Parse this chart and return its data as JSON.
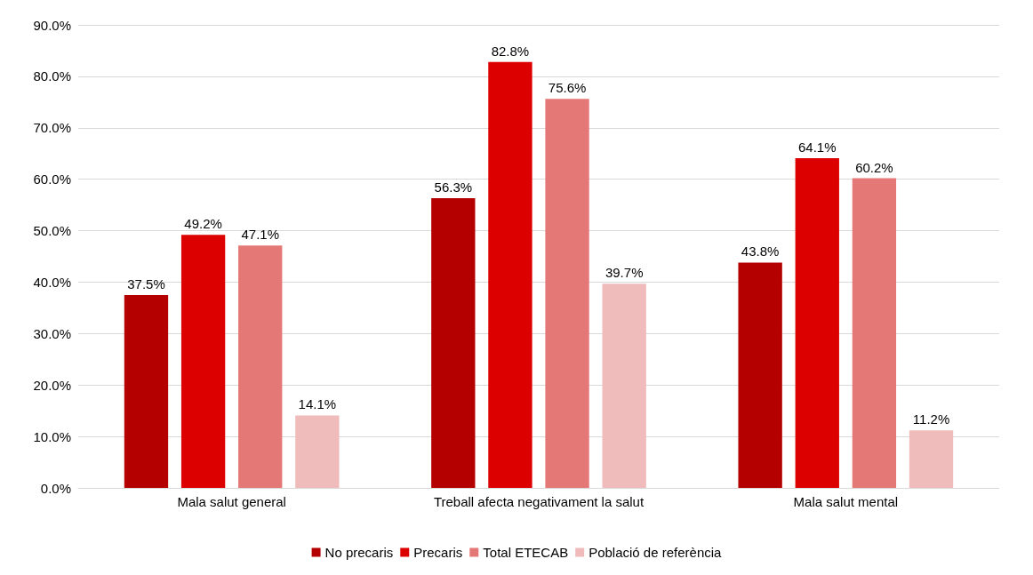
{
  "chart_data": {
    "type": "bar",
    "categories": [
      "Mala salut general",
      "Treball afecta negativament la salut",
      "Mala salut mental"
    ],
    "series": [
      {
        "name": "No precaris",
        "color": "#b50000",
        "values": [
          37.5,
          56.3,
          43.8
        ],
        "value_labels": [
          "37.5%",
          "56.3%",
          "43.8%"
        ]
      },
      {
        "name": "Precaris",
        "color": "#dc0000",
        "values": [
          49.2,
          82.8,
          64.1
        ],
        "value_labels": [
          "49.2%",
          "82.8%",
          "64.1%"
        ]
      },
      {
        "name": "Total ETECAB",
        "color": "#e47876",
        "values": [
          47.1,
          75.6,
          60.2
        ],
        "value_labels": [
          "47.1%",
          "75.6%",
          "60.2%"
        ]
      },
      {
        "name": "Població de referència",
        "color": "#efbcbb",
        "values": [
          14.1,
          39.7,
          11.2
        ],
        "value_labels": [
          "14.1%",
          "39.7%",
          "11.2%"
        ]
      }
    ],
    "ylim": [
      0,
      90
    ],
    "yticks": [
      {
        "value": 0,
        "label": "0.0%"
      },
      {
        "value": 10,
        "label": "10.0%"
      },
      {
        "value": 20,
        "label": "20.0%"
      },
      {
        "value": 30,
        "label": "30.0%"
      },
      {
        "value": 40,
        "label": "40.0%"
      },
      {
        "value": 50,
        "label": "50.0%"
      },
      {
        "value": 60,
        "label": "60.0%"
      },
      {
        "value": 70,
        "label": "70.0%"
      },
      {
        "value": 80,
        "label": "80.0%"
      },
      {
        "value": 90,
        "label": "90.0%"
      }
    ],
    "grid": "y",
    "legend": "bottom"
  }
}
